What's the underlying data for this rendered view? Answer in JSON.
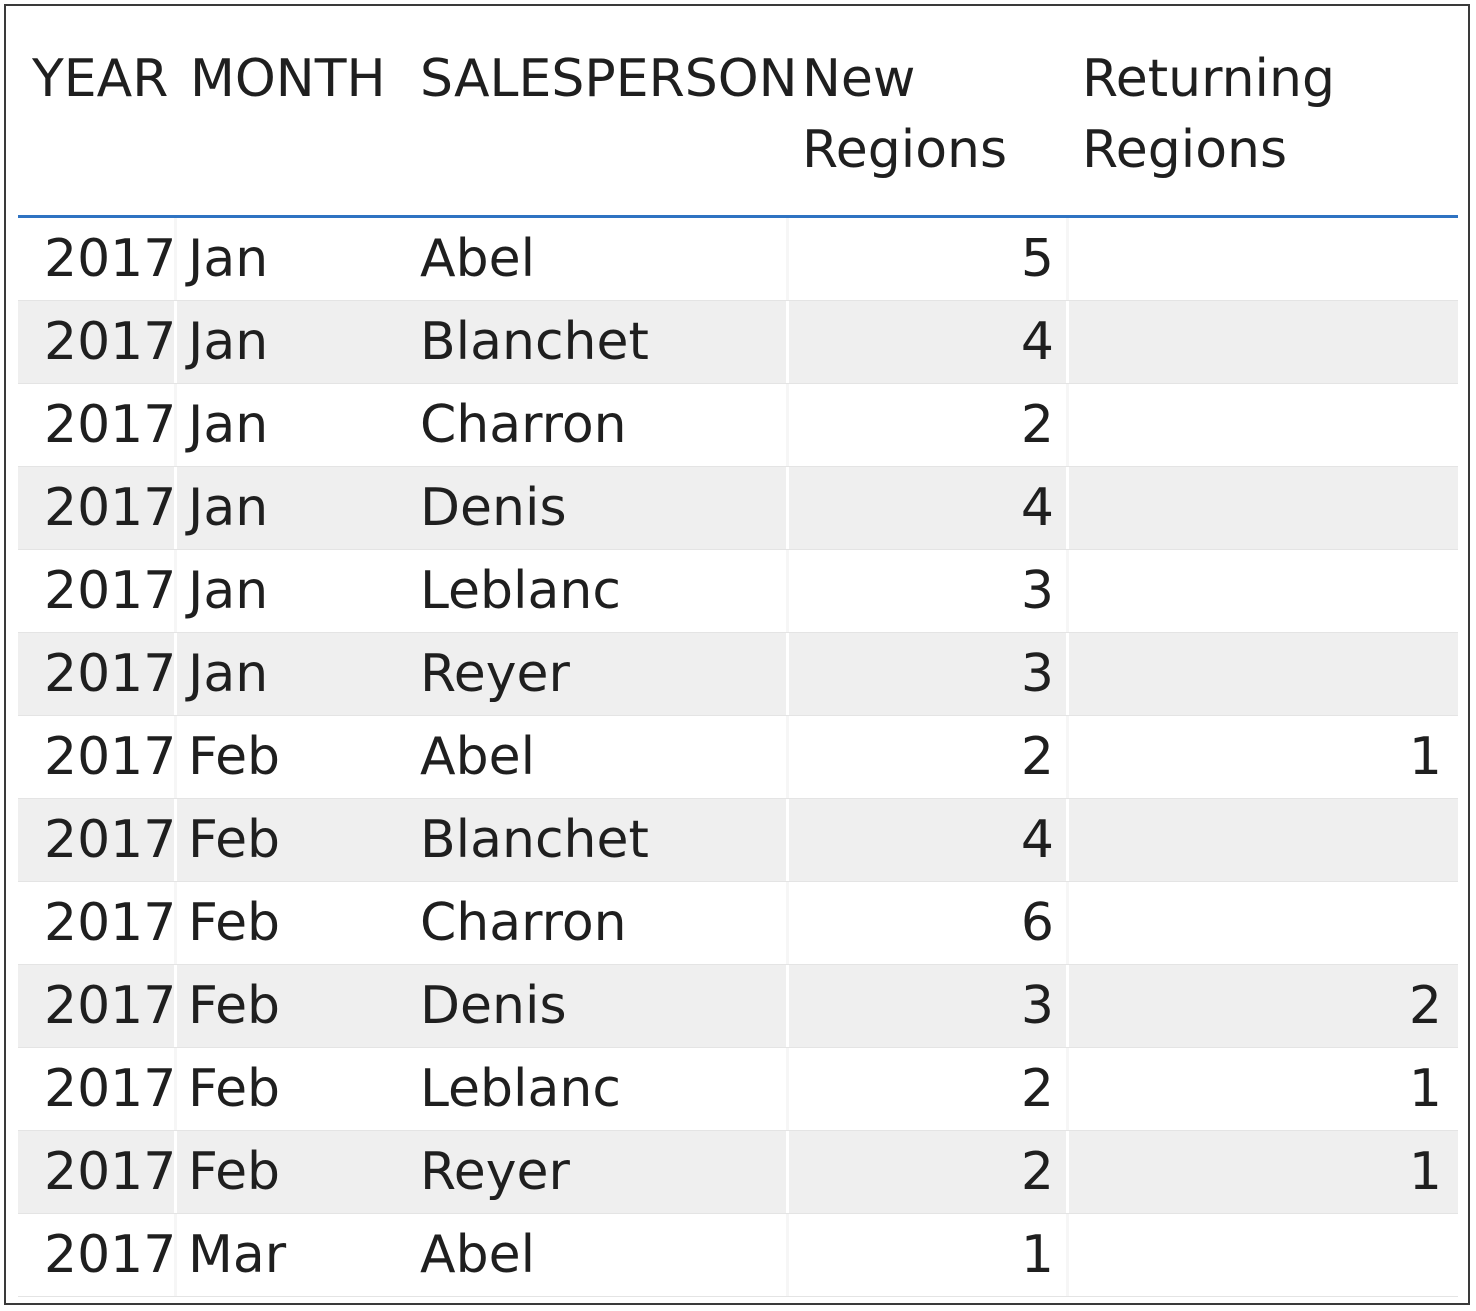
{
  "table": {
    "headers": {
      "year": "YEAR",
      "month": "MONTH",
      "salesperson": "SALESPERSON",
      "new_regions": "New\nRegions",
      "returning_regions": "Returning\nRegions"
    },
    "rows": [
      {
        "year": "2017",
        "month": "Jan",
        "salesperson": "Abel",
        "new_regions": "5",
        "returning_regions": ""
      },
      {
        "year": "2017",
        "month": "Jan",
        "salesperson": "Blanchet",
        "new_regions": "4",
        "returning_regions": ""
      },
      {
        "year": "2017",
        "month": "Jan",
        "salesperson": "Charron",
        "new_regions": "2",
        "returning_regions": ""
      },
      {
        "year": "2017",
        "month": "Jan",
        "salesperson": "Denis",
        "new_regions": "4",
        "returning_regions": ""
      },
      {
        "year": "2017",
        "month": "Jan",
        "salesperson": "Leblanc",
        "new_regions": "3",
        "returning_regions": ""
      },
      {
        "year": "2017",
        "month": "Jan",
        "salesperson": "Reyer",
        "new_regions": "3",
        "returning_regions": ""
      },
      {
        "year": "2017",
        "month": "Feb",
        "salesperson": "Abel",
        "new_regions": "2",
        "returning_regions": "1"
      },
      {
        "year": "2017",
        "month": "Feb",
        "salesperson": "Blanchet",
        "new_regions": "4",
        "returning_regions": ""
      },
      {
        "year": "2017",
        "month": "Feb",
        "salesperson": "Charron",
        "new_regions": "6",
        "returning_regions": ""
      },
      {
        "year": "2017",
        "month": "Feb",
        "salesperson": "Denis",
        "new_regions": "3",
        "returning_regions": "2"
      },
      {
        "year": "2017",
        "month": "Feb",
        "salesperson": "Leblanc",
        "new_regions": "2",
        "returning_regions": "1"
      },
      {
        "year": "2017",
        "month": "Feb",
        "salesperson": "Reyer",
        "new_regions": "2",
        "returning_regions": "1"
      },
      {
        "year": "2017",
        "month": "Mar",
        "salesperson": "Abel",
        "new_regions": "1",
        "returning_regions": ""
      }
    ]
  },
  "colors": {
    "header_underline": "#2f73c2",
    "alt_row_background": "#efefef",
    "text": "#1f1f1f"
  }
}
